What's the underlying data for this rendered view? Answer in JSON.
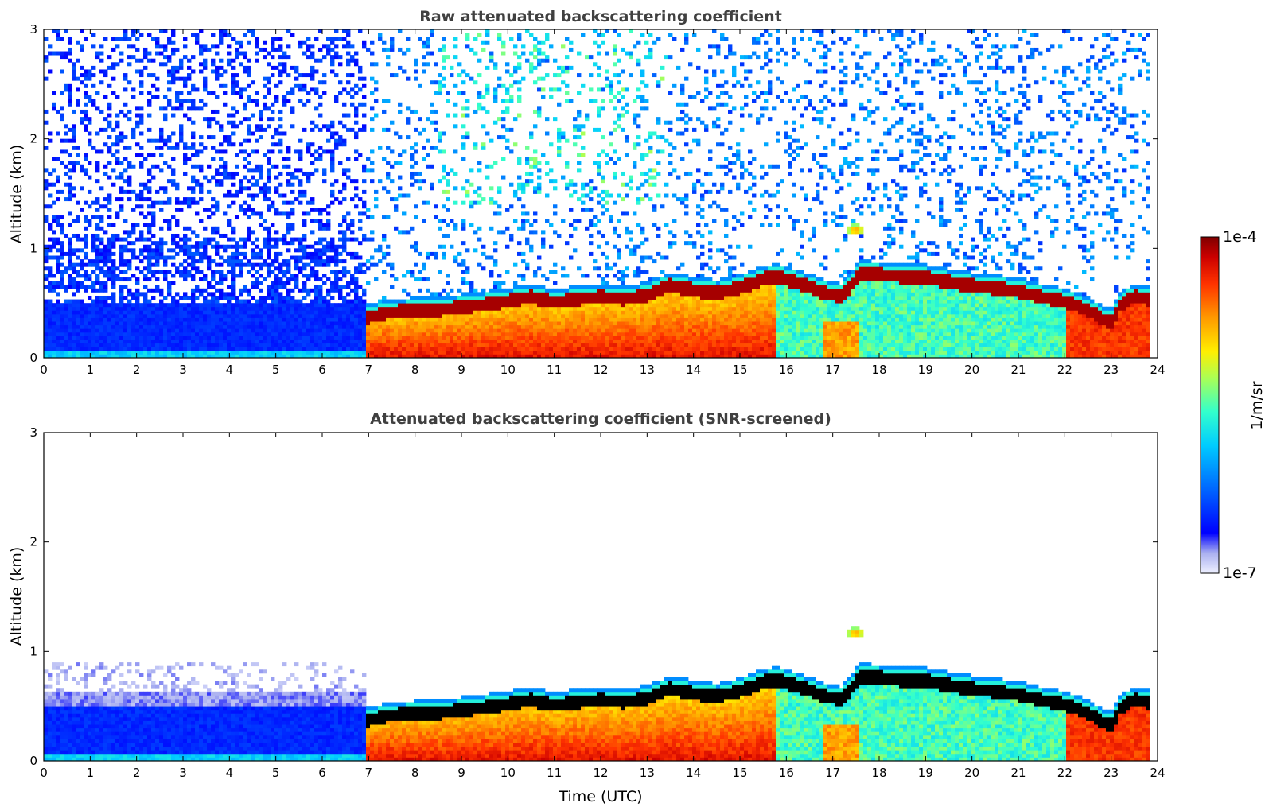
{
  "chart_data": [
    {
      "type": "heatmap",
      "title": "Raw attenuated backscattering coefficient",
      "xlabel": "",
      "ylabel": "Altitude (km)",
      "xlim": [
        0,
        24
      ],
      "ylim": [
        0,
        3
      ],
      "xticks": [
        "0",
        "1",
        "2",
        "3",
        "4",
        "5",
        "6",
        "7",
        "8",
        "9",
        "10",
        "11",
        "12",
        "13",
        "14",
        "15",
        "16",
        "17",
        "18",
        "19",
        "20",
        "21",
        "22",
        "23",
        "24"
      ],
      "yticks": [
        "0",
        "1",
        "2",
        "3"
      ],
      "screened": false,
      "features": {
        "regime_change_time": 6.9,
        "night_aerosol_layer_top_km": 0.5,
        "noise_floor_level": 0.18,
        "boundary_layer_top": {
          "time": [
            6.9,
            7.5,
            8.5,
            9.5,
            10.0,
            10.5,
            11.0,
            11.5,
            12.0,
            12.5,
            13.0,
            13.5,
            14.0,
            14.5,
            15.0,
            15.5,
            15.8,
            16.2,
            16.8,
            17.2,
            17.6,
            18.0,
            18.5,
            19.0,
            19.5,
            20.0,
            20.5,
            21.0,
            21.5,
            22.0,
            22.5,
            22.8,
            23.0,
            23.2,
            23.5,
            23.8
          ],
          "altitude_km": [
            0.42,
            0.48,
            0.5,
            0.55,
            0.58,
            0.62,
            0.57,
            0.6,
            0.62,
            0.6,
            0.63,
            0.72,
            0.68,
            0.65,
            0.7,
            0.78,
            0.8,
            0.75,
            0.66,
            0.62,
            0.83,
            0.82,
            0.8,
            0.79,
            0.75,
            0.72,
            0.7,
            0.67,
            0.62,
            0.58,
            0.5,
            0.42,
            0.38,
            0.55,
            0.62,
            0.6
          ]
        },
        "elevated_cloud": {
          "time": 17.5,
          "altitude_km": 1.17
        }
      }
    },
    {
      "type": "heatmap",
      "title": "Attenuated backscattering coefficient (SNR-screened)",
      "xlabel": "Time (UTC)",
      "ylabel": "Altitude (km)",
      "xlim": [
        0,
        24
      ],
      "ylim": [
        0,
        3
      ],
      "xticks": [
        "0",
        "1",
        "2",
        "3",
        "4",
        "5",
        "6",
        "7",
        "8",
        "9",
        "10",
        "11",
        "12",
        "13",
        "14",
        "15",
        "16",
        "17",
        "18",
        "19",
        "20",
        "21",
        "22",
        "23",
        "24"
      ],
      "yticks": [
        "0",
        "1",
        "2",
        "3"
      ],
      "screened": true
    }
  ],
  "colorbar": {
    "label": "1/m/sr",
    "max_label": "1e-4",
    "min_label": "1e-7",
    "colormap": "jet"
  }
}
